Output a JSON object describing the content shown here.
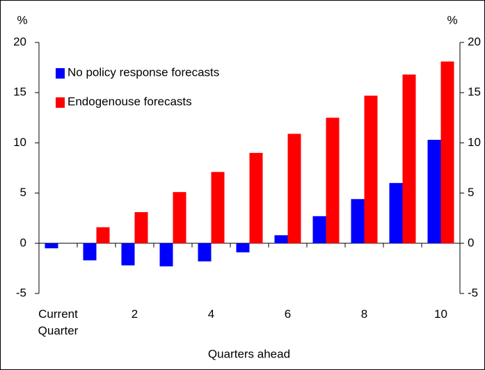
{
  "chart_data": {
    "type": "bar",
    "ylabel": "%",
    "y2label": "%",
    "xlabel": "Quarters ahead",
    "categories": [
      "Current Quarter",
      null,
      "2",
      null,
      "4",
      null,
      "6",
      null,
      "8",
      null,
      "10"
    ],
    "series": [
      {
        "name": "No policy response forecasts",
        "color": "#0000ff",
        "values": [
          -0.5,
          -1.7,
          -2.2,
          -2.3,
          -1.8,
          -0.9,
          0.8,
          2.7,
          4.4,
          6.0,
          10.3
        ]
      },
      {
        "name": "Endogenouse forecasts",
        "color": "#ff0000",
        "values": [
          null,
          1.6,
          3.1,
          5.1,
          7.1,
          9.0,
          10.9,
          12.5,
          14.7,
          16.8,
          18.1
        ]
      }
    ],
    "ylim": [
      -5,
      20
    ],
    "yticks": [
      -5,
      0,
      5,
      10,
      15,
      20
    ],
    "y2lim": [
      -5,
      20
    ],
    "y2ticks": [
      -5,
      0,
      5,
      10,
      15,
      20
    ],
    "legend": "upper left"
  }
}
